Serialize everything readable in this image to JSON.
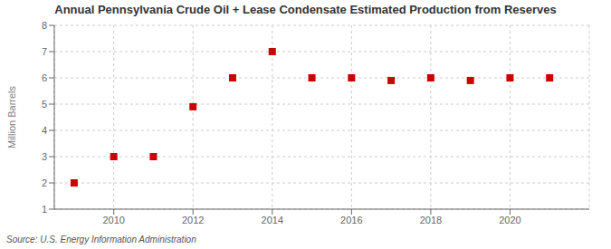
{
  "chart_data": {
    "type": "scatter",
    "title": "Annual Pennsylvania Crude Oil + Lease Condensate Estimated Production from Reserves",
    "ylabel": "Million Barrels",
    "source": "Source: U.S. Energy Information Administration",
    "x": [
      2009,
      2010,
      2011,
      2012,
      2013,
      2014,
      2015,
      2016,
      2017,
      2018,
      2019,
      2020,
      2021
    ],
    "values": [
      2.0,
      3.0,
      3.0,
      4.9,
      6.0,
      7.0,
      6.0,
      6.0,
      5.9,
      6.0,
      5.9,
      6.0,
      6.0
    ],
    "xlim": [
      2008.5,
      2022.0
    ],
    "xticks": [
      2010,
      2012,
      2014,
      2016,
      2018,
      2020
    ],
    "ylim": [
      1,
      8
    ],
    "yticks": [
      1,
      2,
      3,
      4,
      5,
      6,
      7,
      8
    ],
    "color": "#cc0000",
    "marker": "square",
    "grid": true
  }
}
